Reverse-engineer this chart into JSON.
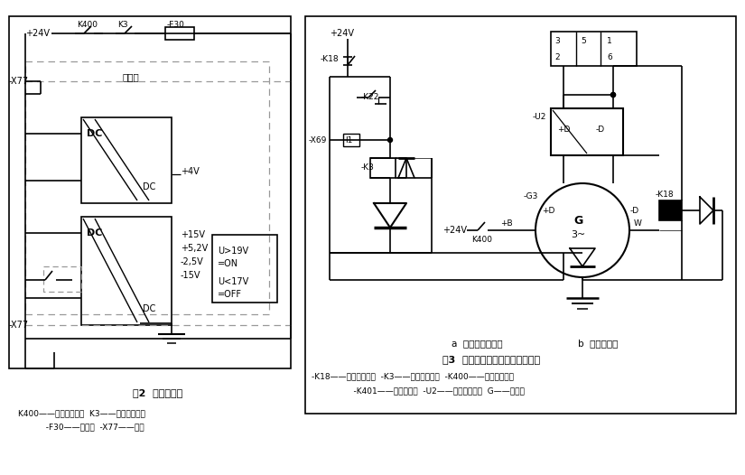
{
  "fig_width": 8.25,
  "fig_height": 5.26,
  "dpi": 100,
  "bg_color": "#ffffff",
  "lc": "#000000",
  "gc": "#999999",
  "texts": {
    "left_title": "图2  电源板电路",
    "left_leg1": "K400——继电器及触点  K3——继电器及触点",
    "left_leg2": "  -F30——燔断器  -X77——插头",
    "dianyanban": "电源板",
    "right_cap_a": "a  电源板外围电路",
    "right_cap_b": "b  发电机电路",
    "right_title": "图3  电源板外围电路及发电机电路",
    "right_leg1": "-K18——继电器及触点  -K3——继电器及触点  -K400——继电器及触点",
    "right_leg2": "    -K401——启动继电器  -U2——发电机稳压器  G——发电机"
  }
}
